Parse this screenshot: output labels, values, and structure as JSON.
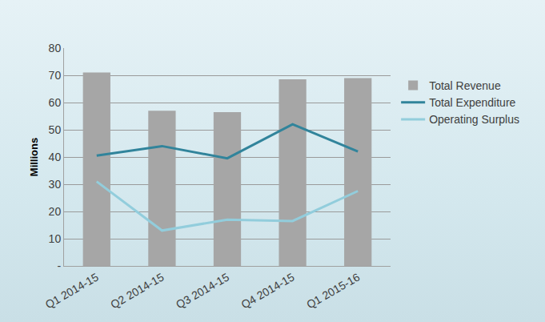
{
  "chart_data": {
    "type": "bar",
    "y_label": "Millions",
    "categories": [
      "Q1 2014-15",
      "Q2 2014-15",
      "Q3 2014-15",
      "Q4 2014-15",
      "Q1 2015-16"
    ],
    "series": [
      {
        "name": "Total Revenue",
        "type": "bar",
        "color": "#a6a6a6",
        "values": [
          71,
          57,
          56.5,
          68.5,
          69
        ]
      },
      {
        "name": "Total Expenditure",
        "type": "line",
        "color": "#31849b",
        "values": [
          40.5,
          44,
          39.5,
          52,
          42
        ]
      },
      {
        "name": "Operating Surplus",
        "type": "line",
        "color": "#92cddc",
        "values": [
          31,
          13,
          17,
          16.5,
          27.5
        ]
      }
    ],
    "ylim": [
      0,
      80
    ],
    "yticks": [
      {
        "value": 0,
        "label": "-"
      },
      10,
      20,
      30,
      40,
      50,
      60,
      70,
      80
    ],
    "grid": true,
    "legend": "right"
  }
}
